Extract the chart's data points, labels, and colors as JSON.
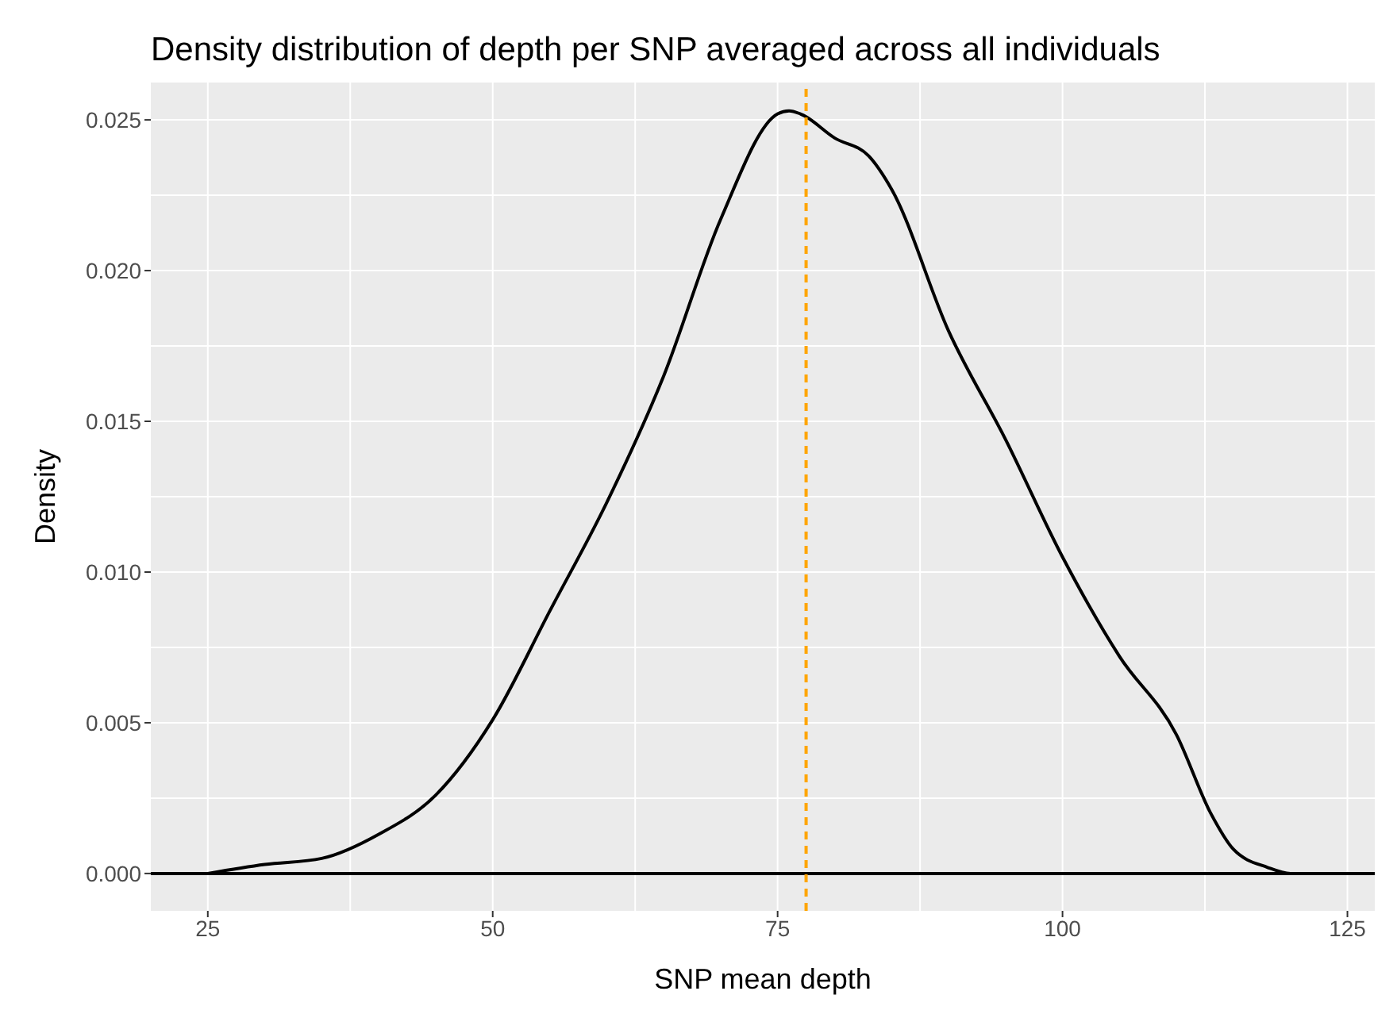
{
  "chart_data": {
    "type": "line",
    "title": "Density distribution of depth per SNP averaged across all individuals",
    "xlabel": "SNP mean depth",
    "ylabel": "Density",
    "x": [
      25,
      30,
      35,
      40,
      45,
      50,
      55,
      60,
      65,
      70,
      75,
      76,
      77,
      80,
      83,
      85,
      90,
      95,
      100,
      105,
      110,
      113,
      115,
      118,
      120,
      125
    ],
    "series": [
      {
        "color": "#000000",
        "values": [
          0,
          0.0003,
          0.0005,
          0.0013,
          0.0026,
          0.0051,
          0.0087,
          0.0123,
          0.0165,
          0.0217,
          0.0252,
          0.0253,
          0.0252,
          0.0244,
          0.0238,
          0.0227,
          0.018,
          0.0144,
          0.0105,
          0.0072,
          0.0046,
          0.002,
          0.0008,
          0.0002,
          0,
          0
        ]
      }
    ],
    "xlim": [
      20,
      127.4
    ],
    "ylim": [
      -0.00124,
      0.02624
    ],
    "xticks": [
      25,
      50,
      75,
      100,
      125
    ],
    "yticks": [
      {
        "value": 0,
        "label": "0.000"
      },
      {
        "value": 0.005,
        "label": "0.005"
      },
      {
        "value": 0.01,
        "label": "0.010"
      },
      {
        "value": 0.015,
        "label": "0.015"
      },
      {
        "value": 0.02,
        "label": "0.020"
      },
      {
        "value": 0.025,
        "label": "0.025"
      }
    ],
    "ref_lines": [
      {
        "axis": "y",
        "value": 0,
        "color": "#000000",
        "line_style": "solid"
      },
      {
        "axis": "x",
        "value": 77.5,
        "color": "#ffa500",
        "line_style": "dashed"
      }
    ],
    "grid": true,
    "marker": "none",
    "line_style": "solid",
    "legend": false
  }
}
